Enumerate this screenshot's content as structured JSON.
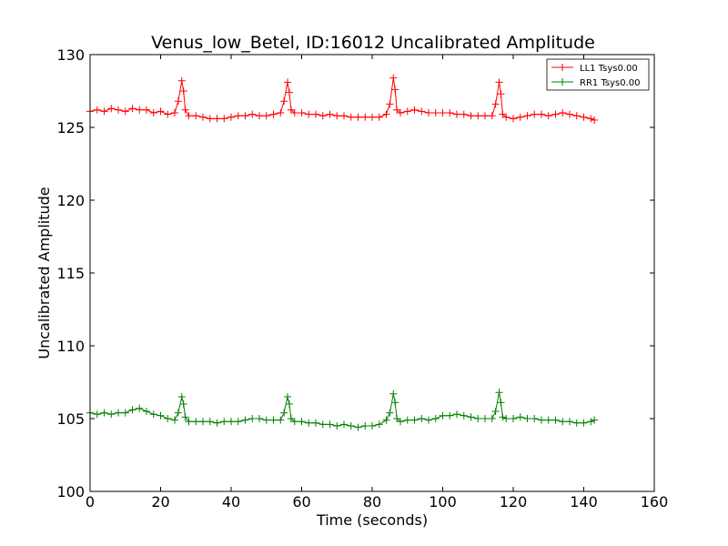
{
  "chart_data": {
    "type": "line",
    "title": "Venus_low_Betel, ID:16012 Uncalibrated Amplitude",
    "xlabel": "Time (seconds)",
    "ylabel": "Uncalibrated Amplitude",
    "xlim": [
      0,
      160
    ],
    "ylim": [
      100,
      130
    ],
    "xticks": [
      0,
      20,
      40,
      60,
      80,
      100,
      120,
      140,
      160
    ],
    "yticks": [
      100,
      105,
      110,
      115,
      120,
      125,
      130
    ],
    "grid": false,
    "legend_position": "top-right",
    "marker": "+",
    "series": [
      {
        "name": "LL1 Tsys0.00",
        "color": "#ff0000",
        "x": [
          0,
          2,
          4,
          6,
          8,
          10,
          12,
          14,
          16,
          18,
          20,
          22,
          24,
          25,
          26,
          26.5,
          27,
          28,
          30,
          32,
          34,
          36,
          38,
          40,
          42,
          44,
          46,
          48,
          50,
          52,
          54,
          55,
          56,
          56.5,
          57,
          58,
          60,
          62,
          64,
          66,
          68,
          70,
          72,
          74,
          76,
          78,
          80,
          82,
          84,
          85,
          86,
          86.5,
          87,
          88,
          90,
          92,
          94,
          96,
          98,
          100,
          102,
          104,
          106,
          108,
          110,
          112,
          114,
          115,
          116,
          116.5,
          117,
          118,
          120,
          122,
          124,
          126,
          128,
          130,
          132,
          134,
          136,
          138,
          140,
          142,
          143
        ],
        "y": [
          126.1,
          126.2,
          126.1,
          126.3,
          126.2,
          126.1,
          126.3,
          126.2,
          126.2,
          126.0,
          126.1,
          125.9,
          126.0,
          126.8,
          128.2,
          127.5,
          126.2,
          125.8,
          125.8,
          125.7,
          125.6,
          125.6,
          125.6,
          125.7,
          125.8,
          125.8,
          125.9,
          125.8,
          125.8,
          125.9,
          126.0,
          126.8,
          128.1,
          127.4,
          126.2,
          126.0,
          126.0,
          125.9,
          125.9,
          125.8,
          125.9,
          125.8,
          125.8,
          125.7,
          125.7,
          125.7,
          125.7,
          125.7,
          125.9,
          126.6,
          128.4,
          127.6,
          126.2,
          126.0,
          126.1,
          126.2,
          126.1,
          126.0,
          126.0,
          126.0,
          126.0,
          125.9,
          125.9,
          125.8,
          125.8,
          125.8,
          125.8,
          126.6,
          128.1,
          127.3,
          125.9,
          125.7,
          125.6,
          125.7,
          125.8,
          125.9,
          125.9,
          125.8,
          125.9,
          126.0,
          125.9,
          125.8,
          125.7,
          125.6,
          125.5
        ]
      },
      {
        "name": "RR1 Tsys0.00",
        "color": "#008000",
        "x": [
          0,
          2,
          4,
          6,
          8,
          10,
          12,
          14,
          16,
          18,
          20,
          22,
          24,
          25,
          26,
          26.5,
          27,
          28,
          30,
          32,
          34,
          36,
          38,
          40,
          42,
          44,
          46,
          48,
          50,
          52,
          54,
          55,
          56,
          56.5,
          57,
          58,
          60,
          62,
          64,
          66,
          68,
          70,
          72,
          74,
          76,
          78,
          80,
          82,
          84,
          85,
          86,
          86.5,
          87,
          88,
          90,
          92,
          94,
          96,
          98,
          100,
          102,
          104,
          106,
          108,
          110,
          112,
          114,
          115,
          116,
          116.5,
          117,
          118,
          120,
          122,
          124,
          126,
          128,
          130,
          132,
          134,
          136,
          138,
          140,
          142,
          143
        ],
        "y": [
          105.4,
          105.3,
          105.4,
          105.3,
          105.4,
          105.4,
          105.6,
          105.7,
          105.5,
          105.3,
          105.2,
          105.0,
          104.9,
          105.4,
          106.5,
          106.0,
          105.1,
          104.8,
          104.8,
          104.8,
          104.8,
          104.7,
          104.8,
          104.8,
          104.8,
          104.9,
          105.0,
          105.0,
          104.9,
          104.9,
          104.9,
          105.4,
          106.5,
          106.0,
          105.0,
          104.8,
          104.8,
          104.7,
          104.7,
          104.6,
          104.6,
          104.5,
          104.6,
          104.5,
          104.4,
          104.5,
          104.5,
          104.6,
          104.9,
          105.4,
          106.7,
          106.1,
          105.0,
          104.8,
          104.9,
          104.9,
          105.0,
          104.9,
          105.0,
          105.2,
          105.2,
          105.3,
          105.2,
          105.1,
          105.0,
          105.0,
          105.0,
          105.5,
          106.8,
          106.1,
          105.1,
          105.0,
          105.0,
          105.1,
          105.0,
          105.0,
          104.9,
          104.9,
          104.9,
          104.8,
          104.8,
          104.7,
          104.7,
          104.8,
          104.9
        ]
      }
    ]
  }
}
